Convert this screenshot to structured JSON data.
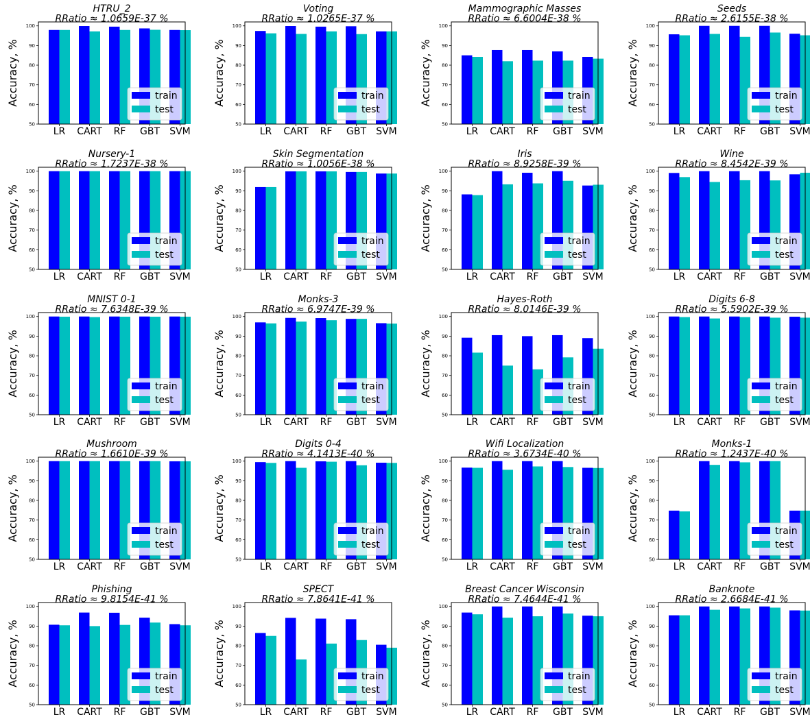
{
  "figure": {
    "colors": {
      "train": "#0000ff",
      "test": "#00bfbf",
      "frame": "#000000",
      "legend_bg": "#ffffff"
    }
  },
  "chart_data": [
    {
      "type": "bar",
      "title": "HTRU_2",
      "subtitle": "RRatio ≈ 1.0659E-37 %",
      "categories": [
        "LR",
        "CART",
        "RF",
        "GBT",
        "SVM"
      ],
      "ylabel": "Accuracy, %",
      "ylim": [
        50,
        102
      ],
      "yticks": [
        50,
        60,
        70,
        80,
        90,
        100
      ],
      "legend": "lower-right",
      "series": [
        {
          "name": "train",
          "values": [
            97.9,
            99.9,
            99.6,
            98.7,
            97.9
          ]
        },
        {
          "name": "test",
          "values": [
            97.9,
            97.2,
            97.9,
            98.0,
            97.8
          ]
        }
      ]
    },
    {
      "type": "bar",
      "title": "Voting",
      "subtitle": "RRatio ≈ 1.0265E-37 %",
      "categories": [
        "LR",
        "CART",
        "RF",
        "GBT",
        "SVM"
      ],
      "ylabel": "Accuracy, %",
      "ylim": [
        50,
        102
      ],
      "yticks": [
        50,
        60,
        70,
        80,
        90,
        100
      ],
      "legend": "lower-right",
      "series": [
        {
          "name": "train",
          "values": [
            97.4,
            99.9,
            99.6,
            99.8,
            97.2
          ]
        },
        {
          "name": "test",
          "values": [
            96.2,
            95.9,
            97.2,
            95.8,
            97.2
          ]
        }
      ]
    },
    {
      "type": "bar",
      "title": "Mammographic Masses",
      "subtitle": "RRatio ≈ 6.6004E-38 %",
      "categories": [
        "LR",
        "CART",
        "RF",
        "GBT",
        "SVM"
      ],
      "ylabel": "Accuracy, %",
      "ylim": [
        50,
        102
      ],
      "yticks": [
        50,
        60,
        70,
        80,
        90,
        100
      ],
      "legend": "lower-right",
      "series": [
        {
          "name": "train",
          "values": [
            85.0,
            87.7,
            87.7,
            87.0,
            84.2
          ]
        },
        {
          "name": "test",
          "values": [
            84.2,
            82.0,
            82.3,
            82.3,
            83.3
          ]
        }
      ]
    },
    {
      "type": "bar",
      "title": "Seeds",
      "subtitle": "RRatio ≈ 2.6155E-38 %",
      "categories": [
        "LR",
        "CART",
        "RF",
        "GBT",
        "SVM"
      ],
      "ylabel": "Accuracy, %",
      "ylim": [
        50,
        102
      ],
      "yticks": [
        50,
        60,
        70,
        80,
        90,
        100
      ],
      "legend": "lower-right",
      "series": [
        {
          "name": "train",
          "values": [
            95.7,
            100,
            100,
            100,
            96.0
          ]
        },
        {
          "name": "test",
          "values": [
            95.2,
            95.9,
            94.4,
            96.6,
            95.2
          ]
        }
      ]
    },
    {
      "type": "bar",
      "title": "Nursery-1",
      "subtitle": "RRatio ≈ 1.7237E-38 %",
      "categories": [
        "LR",
        "CART",
        "RF",
        "GBT",
        "SVM"
      ],
      "ylabel": "Accuracy, %",
      "ylim": [
        50,
        102
      ],
      "yticks": [
        50,
        60,
        70,
        80,
        90,
        100
      ],
      "legend": "lower-right",
      "series": [
        {
          "name": "train",
          "values": [
            100,
            100,
            100,
            100,
            100
          ]
        },
        {
          "name": "test",
          "values": [
            100,
            100,
            100,
            100,
            100
          ]
        }
      ]
    },
    {
      "type": "bar",
      "title": "Skin Segmentation",
      "subtitle": "RRatio ≈ 1.0056E-38 %",
      "categories": [
        "LR",
        "CART",
        "RF",
        "GBT",
        "SVM"
      ],
      "ylabel": "Accuracy, %",
      "ylim": [
        50,
        102
      ],
      "yticks": [
        50,
        60,
        70,
        80,
        90,
        100
      ],
      "legend": "lower-right",
      "series": [
        {
          "name": "train",
          "values": [
            91.9,
            99.9,
            99.9,
            99.6,
            98.8
          ]
        },
        {
          "name": "test",
          "values": [
            91.9,
            99.9,
            99.9,
            99.6,
            98.8
          ]
        }
      ]
    },
    {
      "type": "bar",
      "title": "Iris",
      "subtitle": "RRatio ≈ 8.9258E-39 %",
      "categories": [
        "LR",
        "CART",
        "RF",
        "GBT",
        "SVM"
      ],
      "ylabel": "Accuracy, %",
      "ylim": [
        50,
        102
      ],
      "yticks": [
        50,
        60,
        70,
        80,
        90,
        100
      ],
      "legend": "lower-right",
      "series": [
        {
          "name": "train",
          "values": [
            88.2,
            100,
            99.2,
            100,
            92.7
          ]
        },
        {
          "name": "test",
          "values": [
            87.8,
            93.3,
            93.8,
            95.1,
            93.1
          ]
        }
      ]
    },
    {
      "type": "bar",
      "title": "Wine",
      "subtitle": "RRatio ≈ 8.4542E-39 %",
      "categories": [
        "LR",
        "CART",
        "RF",
        "GBT",
        "SVM"
      ],
      "ylabel": "Accuracy, %",
      "ylim": [
        50,
        102
      ],
      "yticks": [
        50,
        60,
        70,
        80,
        90,
        100
      ],
      "legend": "lower-right",
      "series": [
        {
          "name": "train",
          "values": [
            99.1,
            100,
            100,
            100,
            98.4
          ]
        },
        {
          "name": "test",
          "values": [
            97.0,
            94.5,
            95.4,
            95.3,
            99.2
          ]
        }
      ]
    },
    {
      "type": "bar",
      "title": "MNIST 0-1",
      "subtitle": "RRatio ≈ 7.6348E-39 %",
      "categories": [
        "LR",
        "CART",
        "RF",
        "GBT",
        "SVM"
      ],
      "ylabel": "Accuracy, %",
      "ylim": [
        50,
        102
      ],
      "yticks": [
        50,
        60,
        70,
        80,
        90,
        100
      ],
      "legend": "lower-right",
      "series": [
        {
          "name": "train",
          "values": [
            100,
            100,
            100,
            100,
            100
          ]
        },
        {
          "name": "test",
          "values": [
            99.9,
            99.7,
            99.9,
            99.9,
            99.9
          ]
        }
      ]
    },
    {
      "type": "bar",
      "title": "Monks-3",
      "subtitle": "RRatio ≈ 6.9747E-39 %",
      "categories": [
        "LR",
        "CART",
        "RF",
        "GBT",
        "SVM"
      ],
      "ylabel": "Accuracy, %",
      "ylim": [
        50,
        102
      ],
      "yticks": [
        50,
        60,
        70,
        80,
        90,
        100
      ],
      "legend": "lower-right",
      "series": [
        {
          "name": "train",
          "values": [
            97.0,
            99.3,
            99.2,
            98.8,
            96.6
          ]
        },
        {
          "name": "test",
          "values": [
            96.5,
            97.4,
            98.1,
            98.8,
            96.4
          ]
        }
      ]
    },
    {
      "type": "bar",
      "title": "Hayes-Roth",
      "subtitle": "RRatio ≈ 8.0146E-39 %",
      "categories": [
        "LR",
        "CART",
        "RF",
        "GBT",
        "SVM"
      ],
      "ylabel": "Accuracy, %",
      "ylim": [
        50,
        102
      ],
      "yticks": [
        50,
        60,
        70,
        80,
        90,
        100
      ],
      "legend": "lower-right",
      "series": [
        {
          "name": "train",
          "values": [
            89.2,
            90.5,
            90.0,
            90.5,
            89.0
          ]
        },
        {
          "name": "test",
          "values": [
            81.6,
            75.0,
            73.1,
            79.2,
            83.6
          ]
        }
      ]
    },
    {
      "type": "bar",
      "title": "Digits 6-8",
      "subtitle": "RRatio ≈ 5.5902E-39 %",
      "categories": [
        "LR",
        "CART",
        "RF",
        "GBT",
        "SVM"
      ],
      "ylabel": "Accuracy, %",
      "ylim": [
        50,
        102
      ],
      "yticks": [
        50,
        60,
        70,
        80,
        90,
        100
      ],
      "legend": "lower-right",
      "series": [
        {
          "name": "train",
          "values": [
            100,
            100,
            100,
            100,
            99.9
          ]
        },
        {
          "name": "test",
          "values": [
            99.7,
            99.0,
            99.7,
            99.4,
            99.4
          ]
        }
      ]
    },
    {
      "type": "bar",
      "title": "Mushroom",
      "subtitle": "RRatio ≈ 1.6610E-39 %",
      "categories": [
        "LR",
        "CART",
        "RF",
        "GBT",
        "SVM"
      ],
      "ylabel": "Accuracy, %",
      "ylim": [
        50,
        102
      ],
      "yticks": [
        50,
        60,
        70,
        80,
        90,
        100
      ],
      "legend": "lower-right",
      "series": [
        {
          "name": "train",
          "values": [
            100,
            100,
            100,
            100,
            99.9
          ]
        },
        {
          "name": "test",
          "values": [
            100,
            100,
            100,
            100,
            99.9
          ]
        }
      ]
    },
    {
      "type": "bar",
      "title": "Digits 0-4",
      "subtitle": "RRatio ≈ 4.1413E-40 %",
      "categories": [
        "LR",
        "CART",
        "RF",
        "GBT",
        "SVM"
      ],
      "ylabel": "Accuracy, %",
      "ylim": [
        50,
        102
      ],
      "yticks": [
        50,
        60,
        70,
        80,
        90,
        100
      ],
      "legend": "lower-right",
      "series": [
        {
          "name": "train",
          "values": [
            99.5,
            100,
            99.9,
            100,
            99.2
          ]
        },
        {
          "name": "test",
          "values": [
            99.1,
            96.6,
            99.7,
            97.9,
            99.1
          ]
        }
      ]
    },
    {
      "type": "bar",
      "title": "Wifi Localization",
      "subtitle": "RRatio ≈ 3.6734E-40 %",
      "categories": [
        "LR",
        "CART",
        "RF",
        "GBT",
        "SVM"
      ],
      "ylabel": "Accuracy, %",
      "ylim": [
        50,
        102
      ],
      "yticks": [
        50,
        60,
        70,
        80,
        90,
        100
      ],
      "legend": "lower-right",
      "series": [
        {
          "name": "train",
          "values": [
            96.7,
            100,
            100,
            100,
            96.6
          ]
        },
        {
          "name": "test",
          "values": [
            96.6,
            95.6,
            97.3,
            97.0,
            96.5
          ]
        }
      ]
    },
    {
      "type": "bar",
      "title": "Monks-1",
      "subtitle": "RRatio ≈ 1.2437E-40 %",
      "categories": [
        "LR",
        "CART",
        "RF",
        "GBT",
        "SVM"
      ],
      "ylabel": "Accuracy, %",
      "ylim": [
        50,
        102
      ],
      "yticks": [
        50,
        60,
        70,
        80,
        90,
        100
      ],
      "legend": "lower-right",
      "series": [
        {
          "name": "train",
          "values": [
            74.8,
            100,
            100,
            100,
            74.8
          ]
        },
        {
          "name": "test",
          "values": [
            74.4,
            98.1,
            99.4,
            100,
            74.8
          ]
        }
      ]
    },
    {
      "type": "bar",
      "title": "Phishing",
      "subtitle": "RRatio ≈ 9.8154E-41 %",
      "categories": [
        "LR",
        "CART",
        "RF",
        "GBT",
        "SVM"
      ],
      "ylabel": "Accuracy, %",
      "ylim": [
        50,
        102
      ],
      "yticks": [
        50,
        60,
        70,
        80,
        90,
        100
      ],
      "legend": "lower-right",
      "series": [
        {
          "name": "train",
          "values": [
            90.7,
            96.9,
            96.8,
            94.3,
            91.0
          ]
        },
        {
          "name": "test",
          "values": [
            90.4,
            90.0,
            90.6,
            91.8,
            90.4
          ]
        }
      ]
    },
    {
      "type": "bar",
      "title": "SPECT",
      "subtitle": "RRatio ≈ 7.8641E-41 %",
      "categories": [
        "LR",
        "CART",
        "RF",
        "GBT",
        "SVM"
      ],
      "ylabel": "Accuracy, %",
      "ylim": [
        50,
        102
      ],
      "yticks": [
        50,
        60,
        70,
        80,
        90,
        100
      ],
      "legend": "lower-right",
      "series": [
        {
          "name": "train",
          "values": [
            86.5,
            94.2,
            93.8,
            93.5,
            80.5
          ]
        },
        {
          "name": "test",
          "values": [
            85.0,
            73.0,
            81.1,
            82.9,
            79.0
          ]
        }
      ]
    },
    {
      "type": "bar",
      "title": "Breast Cancer Wisconsin",
      "subtitle": "RRatio ≈ 7.4644E-41 %",
      "categories": [
        "LR",
        "CART",
        "RF",
        "GBT",
        "SVM"
      ],
      "ylabel": "Accuracy, %",
      "ylim": [
        50,
        102
      ],
      "yticks": [
        50,
        60,
        70,
        80,
        90,
        100
      ],
      "legend": "lower-right",
      "series": [
        {
          "name": "train",
          "values": [
            96.9,
            100,
            100,
            100,
            95.3
          ]
        },
        {
          "name": "test",
          "values": [
            96.0,
            94.3,
            95.0,
            96.4,
            95.0
          ]
        }
      ]
    },
    {
      "type": "bar",
      "title": "Banknote",
      "subtitle": "RRatio ≈ 2.6684E-41 %",
      "categories": [
        "LR",
        "CART",
        "RF",
        "GBT",
        "SVM"
      ],
      "ylabel": "Accuracy, %",
      "ylim": [
        50,
        102
      ],
      "yticks": [
        50,
        60,
        70,
        80,
        90,
        100
      ],
      "legend": "lower-right",
      "series": [
        {
          "name": "train",
          "values": [
            95.5,
            100,
            100,
            100,
            98.0
          ]
        },
        {
          "name": "test",
          "values": [
            95.5,
            98.3,
            99.0,
            99.4,
            97.9
          ]
        }
      ]
    }
  ]
}
